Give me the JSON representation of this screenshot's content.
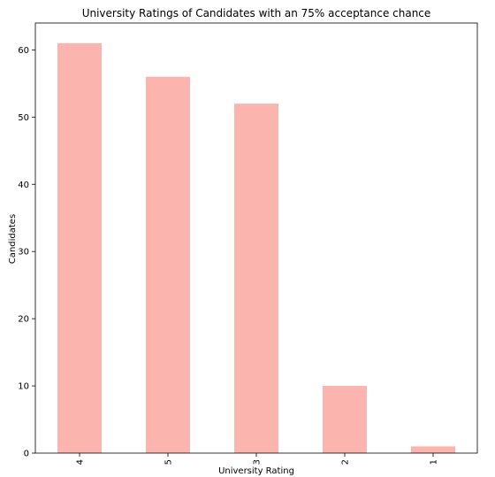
{
  "chart_data": {
    "type": "bar",
    "title": "University Ratings of Candidates with an 75% acceptance chance",
    "xlabel": "University Rating",
    "ylabel": "Candidates",
    "categories": [
      "4",
      "5",
      "3",
      "2",
      "1"
    ],
    "values": [
      61,
      56,
      52,
      10,
      1
    ],
    "ylim": [
      0,
      64
    ],
    "yticks": [
      0,
      10,
      20,
      30,
      40,
      50,
      60
    ],
    "bar_color": "#fbb4ae",
    "grid": false,
    "legend": "none"
  }
}
